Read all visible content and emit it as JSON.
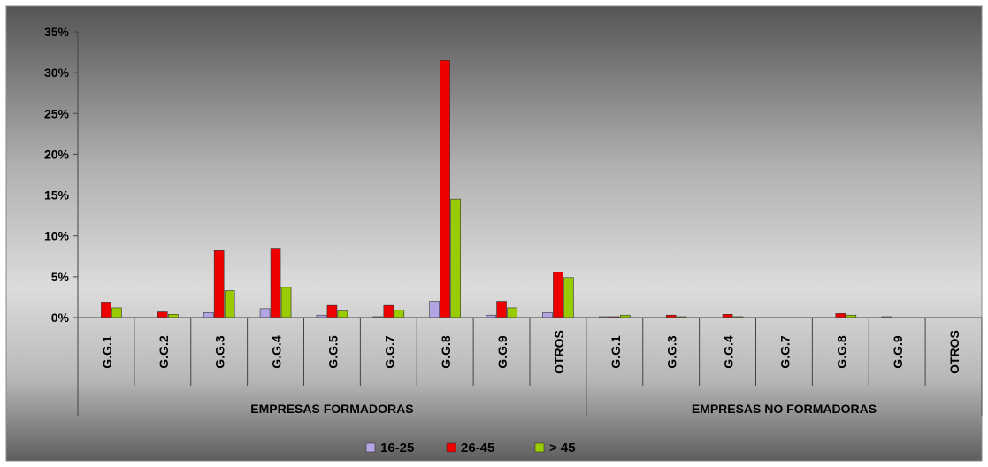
{
  "chart_data": {
    "type": "bar",
    "title": "",
    "xlabel": "",
    "ylabel": "",
    "ylim": [
      0,
      35
    ],
    "y_ticks": [
      "0%",
      "5%",
      "10%",
      "15%",
      "20%",
      "25%",
      "30%",
      "35%"
    ],
    "grid": false,
    "legend_position": "bottom",
    "groups": [
      {
        "name": "EMPRESAS FORMADORAS",
        "categories": [
          "G.G.1",
          "G.G.2",
          "G.G.3",
          "G.G.4",
          "G.G.5",
          "G.G.7",
          "G.G.8",
          "G.G.9",
          "OTROS"
        ]
      },
      {
        "name": "EMPRESAS NO FORMADORAS",
        "categories": [
          "G.G.1",
          "G.G.3",
          "G.G.4",
          "G.G.7",
          "G.G.8",
          "G.G.9",
          "OTROS"
        ]
      }
    ],
    "series": [
      {
        "name": "16-25",
        "color": "#b4a4e6",
        "values": [
          0,
          0,
          0.6,
          1.1,
          0.3,
          0.1,
          2.0,
          0.3,
          0.6,
          0.1,
          0,
          0,
          0,
          0,
          0.1,
          0
        ]
      },
      {
        "name": "26-45",
        "color": "#ee0000",
        "values": [
          1.8,
          0.7,
          8.2,
          8.5,
          1.5,
          1.5,
          31.5,
          2.0,
          5.6,
          0.1,
          0.3,
          0.4,
          0,
          0.5,
          0,
          0
        ]
      },
      {
        "name": "> 45",
        "color": "#99cc00",
        "values": [
          1.2,
          0.4,
          3.3,
          3.7,
          0.8,
          0.9,
          14.5,
          1.2,
          4.9,
          0.3,
          0.1,
          0.1,
          0,
          0.3,
          0,
          0
        ]
      }
    ]
  }
}
